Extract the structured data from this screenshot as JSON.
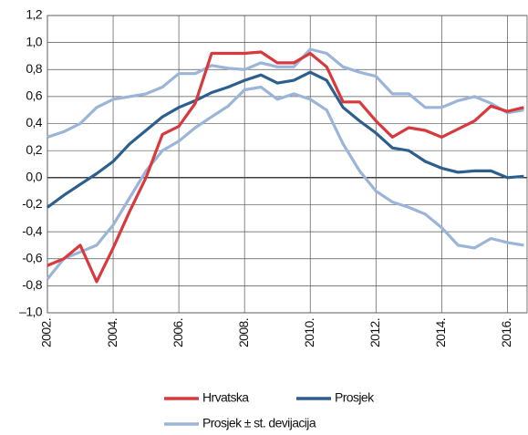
{
  "chart_data": {
    "type": "line",
    "x": [
      2002,
      2002.5,
      2003,
      2003.5,
      2004,
      2004.5,
      2005,
      2005.5,
      2006,
      2006.5,
      2007,
      2007.5,
      2008,
      2008.5,
      2009,
      2009.5,
      2010,
      2010.5,
      2011,
      2011.5,
      2012,
      2012.5,
      2013,
      2013.5,
      2014,
      2014.5,
      2015,
      2015.5,
      2016,
      2016.5
    ],
    "series": [
      {
        "name": "Hrvatska",
        "color": "#d9383c",
        "values": [
          -0.65,
          -0.6,
          -0.5,
          -0.77,
          -0.52,
          -0.25,
          0.0,
          0.32,
          0.38,
          0.55,
          0.92,
          0.92,
          0.92,
          0.93,
          0.85,
          0.85,
          0.92,
          0.82,
          0.56,
          0.56,
          0.42,
          0.3,
          0.37,
          0.35,
          0.3,
          0.36,
          0.42,
          0.53,
          0.49,
          0.52
        ]
      },
      {
        "name": "Prosjek",
        "color": "#2d5f8e",
        "values": [
          -0.22,
          -0.13,
          -0.05,
          0.03,
          0.12,
          0.25,
          0.35,
          0.45,
          0.52,
          0.57,
          0.63,
          0.67,
          0.72,
          0.76,
          0.7,
          0.72,
          0.78,
          0.72,
          0.52,
          0.42,
          0.33,
          0.22,
          0.2,
          0.12,
          0.07,
          0.04,
          0.05,
          0.05,
          0.0,
          0.01
        ]
      },
      {
        "name": "Prosjek ± st. devijacija",
        "color": "#9bb5d8",
        "upper": [
          0.3,
          0.34,
          0.4,
          0.52,
          0.58,
          0.6,
          0.62,
          0.67,
          0.77,
          0.77,
          0.83,
          0.81,
          0.8,
          0.85,
          0.82,
          0.82,
          0.95,
          0.92,
          0.82,
          0.78,
          0.75,
          0.62,
          0.62,
          0.52,
          0.52,
          0.57,
          0.6,
          0.55,
          0.48,
          0.5
        ],
        "lower": [
          -0.75,
          -0.6,
          -0.55,
          -0.5,
          -0.35,
          -0.15,
          0.05,
          0.2,
          0.27,
          0.37,
          0.45,
          0.53,
          0.65,
          0.67,
          0.58,
          0.62,
          0.58,
          0.5,
          0.25,
          0.05,
          -0.1,
          -0.18,
          -0.22,
          -0.27,
          -0.37,
          -0.5,
          -0.52,
          -0.45,
          -0.48,
          -0.5
        ]
      }
    ],
    "xlim": [
      2002,
      2016.6
    ],
    "xticks": [
      {
        "value": 2002,
        "label": "2002."
      },
      {
        "value": 2004,
        "label": "2004."
      },
      {
        "value": 2006,
        "label": "2006."
      },
      {
        "value": 2008,
        "label": "2008."
      },
      {
        "value": 2010,
        "label": "2010."
      },
      {
        "value": 2012,
        "label": "2012."
      },
      {
        "value": 2014,
        "label": "2014."
      },
      {
        "value": 2016,
        "label": "2016."
      }
    ],
    "ylim": [
      -1.0,
      1.2
    ],
    "yticks": [
      {
        "value": 1.2,
        "label": "1,2"
      },
      {
        "value": 1.0,
        "label": "1,0"
      },
      {
        "value": 0.8,
        "label": "0,8"
      },
      {
        "value": 0.6,
        "label": "0,6"
      },
      {
        "value": 0.4,
        "label": "0,4"
      },
      {
        "value": 0.2,
        "label": "0,2"
      },
      {
        "value": 0.0,
        "label": "0,0"
      },
      {
        "value": -0.2,
        "label": "-0,2"
      },
      {
        "value": -0.4,
        "label": "-0,4"
      },
      {
        "value": -0.6,
        "label": "-0,6"
      },
      {
        "value": -0.8,
        "label": "-0,8"
      },
      {
        "value": -1.0,
        "label": "–1,0"
      }
    ],
    "grid": true
  }
}
